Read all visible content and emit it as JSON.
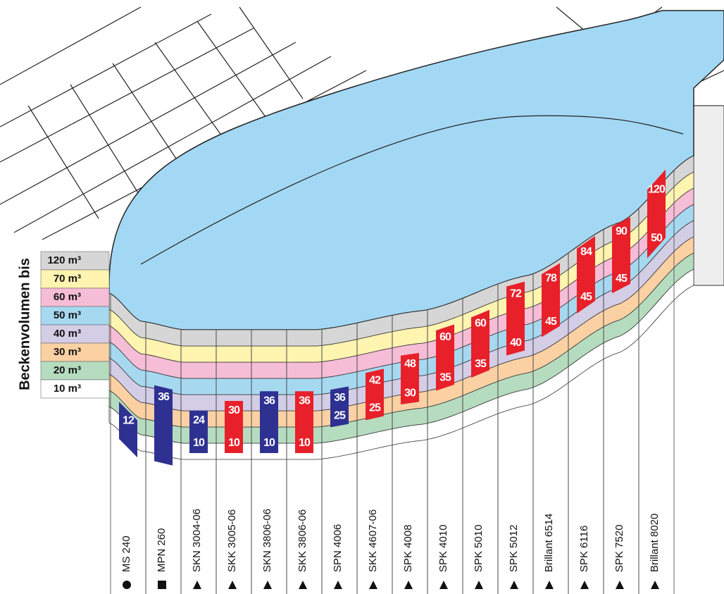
{
  "legend": {
    "title": "Beckenvolumen bis",
    "items": [
      {
        "value": 120,
        "label": "120 m³",
        "color": "#d6d6d6"
      },
      {
        "value": 70,
        "label": "70 m³",
        "color": "#fff4b0"
      },
      {
        "value": 60,
        "label": "60 m³",
        "color": "#f6bdd6"
      },
      {
        "value": 50,
        "label": "50 m³",
        "color": "#a6d8f0"
      },
      {
        "value": 40,
        "label": "40 m³",
        "color": "#d3cde6"
      },
      {
        "value": 30,
        "label": "30 m³",
        "color": "#fbd1a4"
      },
      {
        "value": 20,
        "label": "20 m³",
        "color": "#b6dcbf"
      },
      {
        "value": 10,
        "label": "10 m³",
        "color": "#ffffff"
      }
    ]
  },
  "products": [
    {
      "name": "MS 240",
      "symbol": "circle",
      "color": "#2e3192",
      "max": 12
    },
    {
      "name": "MPN 260",
      "symbol": "square",
      "color": "#2e3192",
      "max": 36
    },
    {
      "name": "SKN 3004-06",
      "symbol": "triangle",
      "color": "#2e3192",
      "max": 24,
      "min": 10
    },
    {
      "name": "SKK 3005-06",
      "symbol": "triangle",
      "color": "#e8202a",
      "max": 30,
      "min": 10
    },
    {
      "name": "SKN 3806-06",
      "symbol": "triangle",
      "color": "#2e3192",
      "max": 36,
      "min": 10
    },
    {
      "name": "SKK 3806-06",
      "symbol": "triangle",
      "color": "#e8202a",
      "max": 36,
      "min": 10
    },
    {
      "name": "SPN 4006",
      "symbol": "triangle",
      "color": "#2e3192",
      "max": 36,
      "min": 25
    },
    {
      "name": "SKK 4607-06",
      "symbol": "triangle",
      "color": "#e8202a",
      "max": 42,
      "min": 25
    },
    {
      "name": "SPK 4008",
      "symbol": "triangle",
      "color": "#e8202a",
      "max": 48,
      "min": 30
    },
    {
      "name": "SPK 4010",
      "symbol": "triangle",
      "color": "#e8202a",
      "max": 60,
      "min": 35
    },
    {
      "name": "SPK 5010",
      "symbol": "triangle",
      "color": "#e8202a",
      "max": 60,
      "min": 35
    },
    {
      "name": "SPK 5012",
      "symbol": "triangle",
      "color": "#e8202a",
      "max": 72,
      "min": 40
    },
    {
      "name": "Brillant 6514",
      "symbol": "triangle",
      "color": "#e8202a",
      "max": 78,
      "min": 45
    },
    {
      "name": "SPK 6116",
      "symbol": "triangle",
      "color": "#e8202a",
      "max": 84,
      "min": 45
    },
    {
      "name": "SPK 7520",
      "symbol": "triangle",
      "color": "#e8202a",
      "max": 90,
      "min": 45
    },
    {
      "name": "Brillant 8020",
      "symbol": "triangle",
      "color": "#e8202a",
      "max": 120,
      "min": 50
    }
  ]
}
